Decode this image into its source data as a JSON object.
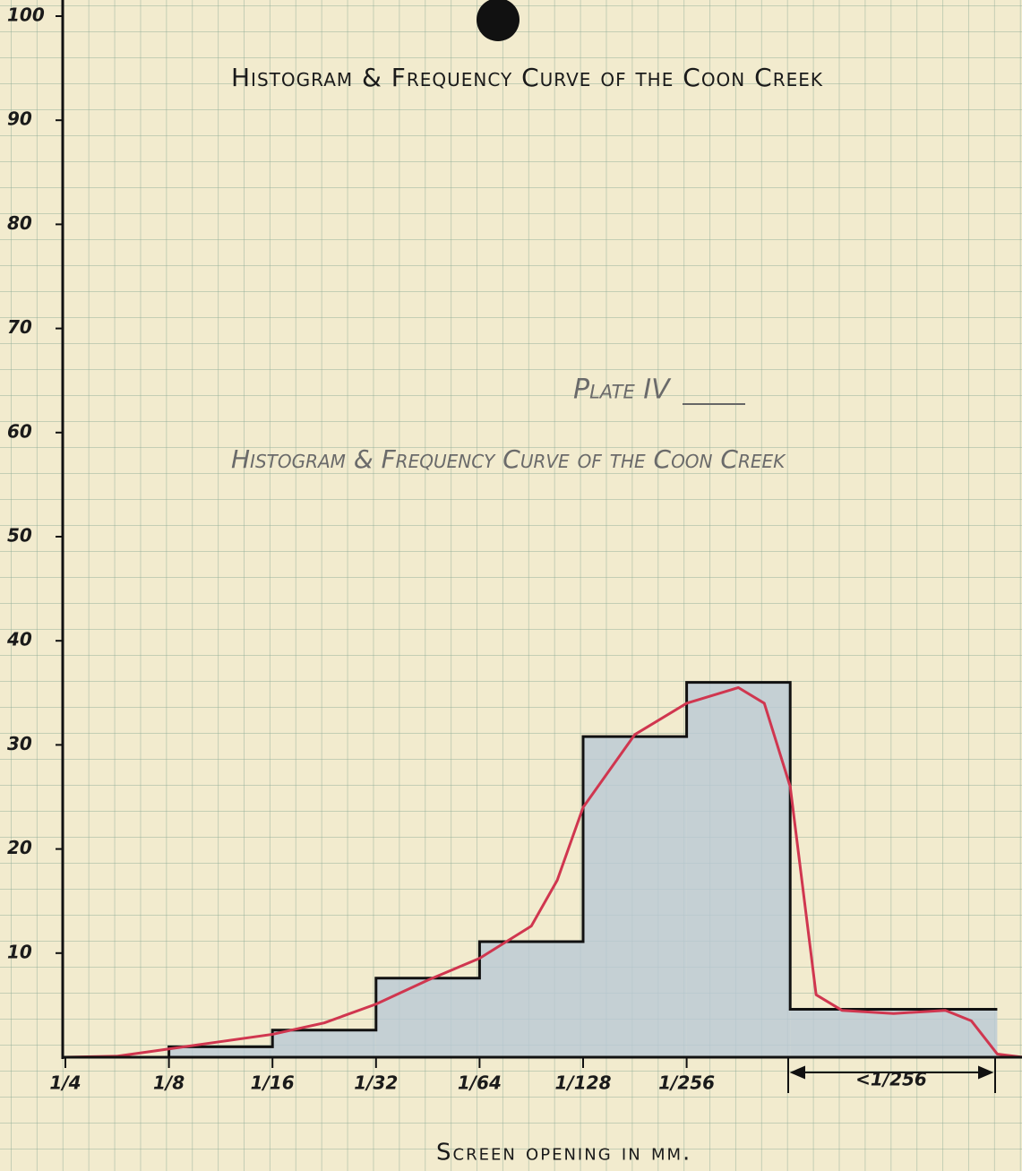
{
  "chart_data": {
    "type": "histogram",
    "title": "Histogram & Frequency Curve of the Coon Creek",
    "plate": "Plate IV",
    "subtitle": "Histogram & Frequency Curve of the Coon Creek",
    "xlabel": "Screen opening in mm.",
    "bins": [
      0.25,
      0.125,
      0.0625,
      0.03125,
      0.015625,
      0.0078125,
      0.00390625,
      0.001953125,
      0.00048828125
    ],
    "values": [
      0,
      1,
      2.6,
      7.6,
      11.1,
      30.8,
      36,
      4.6
    ],
    "color": "#b9c9d6",
    "curve": {
      "color": "#d0364f",
      "x": [
        0.25,
        0.1768,
        0.125,
        0.0884,
        0.0625,
        0.0442,
        0.03125,
        0.0221,
        0.015625,
        0.01105,
        0.00929,
        0.0078125,
        0.005524,
        0.00390625,
        0.002762,
        0.002323,
        0.001953,
        0.001642,
        0.001381,
        0.000977,
        0.000691,
        0.000581,
        0.000488,
        0.000411
      ],
      "values": [
        0,
        0.1,
        0.8,
        1.5,
        2.2,
        3.3,
        5.1,
        7.4,
        9.5,
        12.6,
        17,
        24,
        31,
        34,
        35.5,
        34,
        26,
        6,
        4.5,
        4.2,
        4.5,
        3.5,
        0.3,
        0
      ]
    },
    "xscale": "log",
    "xlim": [
      0.25,
      0.000411
    ],
    "xticks": [
      {
        "value": 0.25,
        "label": "1/4"
      },
      {
        "value": 0.125,
        "label": "1/8"
      },
      {
        "value": 0.0625,
        "label": "1/16"
      },
      {
        "value": 0.03125,
        "label": "1/32"
      },
      {
        "value": 0.015625,
        "label": "1/64"
      },
      {
        "value": 0.0078125,
        "label": "1/128"
      },
      {
        "value": 0.00390625,
        "label": "1/256"
      }
    ],
    "bracket_label": "<1/256",
    "ylim": [
      0,
      100
    ],
    "yticks": [
      10,
      20,
      30,
      40,
      50,
      60,
      70,
      80,
      90,
      100
    ]
  }
}
